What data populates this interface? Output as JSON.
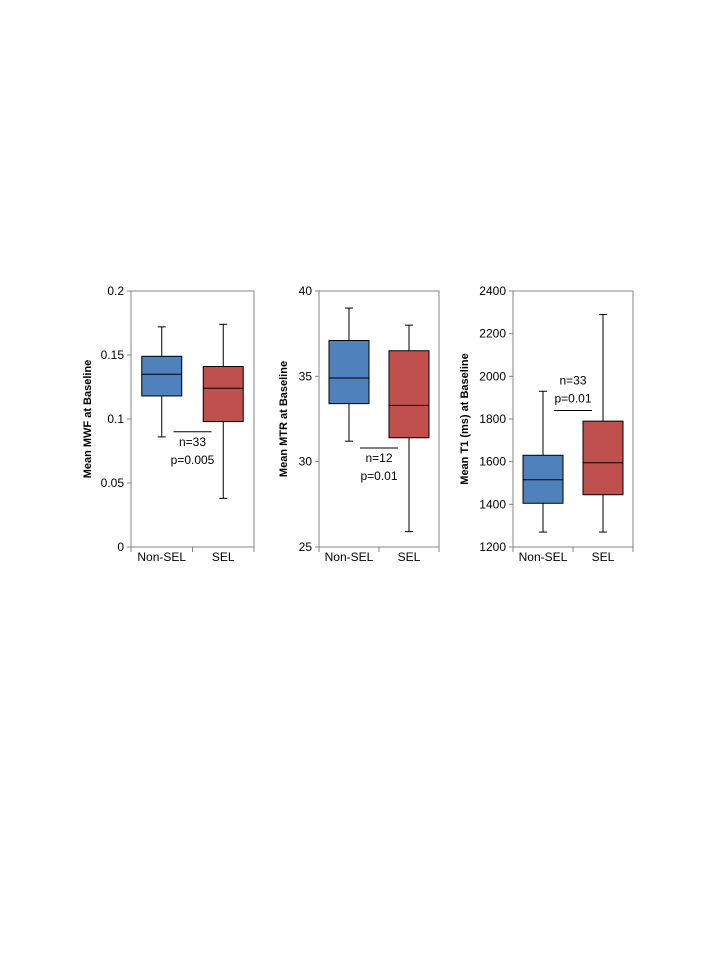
{
  "colors": {
    "non_sel": "#4f81bd",
    "sel": "#c0504d"
  },
  "chart_data": [
    {
      "type": "box",
      "ylabel": "Mean MWF at Baseline",
      "ylim": [
        0,
        0.2
      ],
      "yticks": [
        0,
        0.05,
        0.1,
        0.15,
        0.2
      ],
      "ytick_labels": [
        "0",
        "0.05",
        "0.1",
        "0.15",
        "0.2"
      ],
      "categories": [
        "Non-SEL",
        "SEL"
      ],
      "boxes": [
        {
          "category": "Non-SEL",
          "min": 0.086,
          "q1": 0.118,
          "median": 0.135,
          "q3": 0.149,
          "max": 0.172
        },
        {
          "category": "SEL",
          "min": 0.038,
          "q1": 0.098,
          "median": 0.124,
          "q3": 0.141,
          "max": 0.174
        }
      ],
      "annotation": {
        "lines": [
          "n=33",
          "p=0.005"
        ],
        "bar_y": 0.09
      }
    },
    {
      "type": "box",
      "ylabel": "Mean MTR at Baseline",
      "ylim": [
        25,
        40
      ],
      "yticks": [
        25,
        30,
        35,
        40
      ],
      "ytick_labels": [
        "25",
        "30",
        "35",
        "40"
      ],
      "categories": [
        "Non-SEL",
        "SEL"
      ],
      "boxes": [
        {
          "category": "Non-SEL",
          "min": 31.2,
          "q1": 33.4,
          "median": 34.9,
          "q3": 37.1,
          "max": 39.0
        },
        {
          "category": "SEL",
          "min": 25.9,
          "q1": 31.4,
          "median": 33.3,
          "q3": 36.5,
          "max": 38.0
        }
      ],
      "annotation": {
        "lines": [
          "n=12",
          "p=0.01"
        ],
        "bar_y": 30.8
      }
    },
    {
      "type": "box",
      "ylabel": "Mean T1 (ms) at Baseline",
      "ylim": [
        1200,
        2400
      ],
      "yticks": [
        1200,
        1400,
        1600,
        1800,
        2000,
        2200,
        2400
      ],
      "ytick_labels": [
        "1200",
        "1400",
        "1600",
        "1800",
        "2000",
        "2200",
        "2400"
      ],
      "categories": [
        "Non-SEL",
        "SEL"
      ],
      "boxes": [
        {
          "category": "Non-SEL",
          "min": 1270,
          "q1": 1405,
          "median": 1515,
          "q3": 1630,
          "max": 1930
        },
        {
          "category": "SEL",
          "min": 1270,
          "q1": 1445,
          "median": 1595,
          "q3": 1790,
          "max": 2290
        }
      ],
      "annotation": {
        "lines": [
          "n=33",
          "p=0.01"
        ],
        "bar_y": 1840,
        "text_above": true
      }
    }
  ]
}
